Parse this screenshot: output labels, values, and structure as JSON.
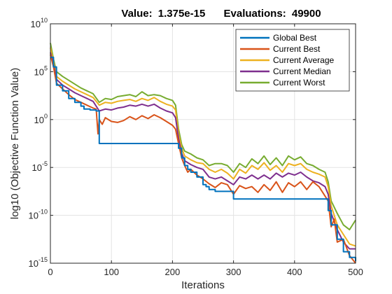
{
  "chart_data": {
    "type": "line",
    "title_value_label": "Value:",
    "title_value": "1.375e-15",
    "title_evals_label": "Evaluations:",
    "title_evals": "49900",
    "xlabel": "Iterations",
    "ylabel": "log10 (Objective Function Value)",
    "xlim": [
      0,
      500
    ],
    "ylim_log10": [
      -15,
      10
    ],
    "yscale": "log",
    "grid": true,
    "legend_position": "top-right",
    "x_ticks": [
      "0",
      "100",
      "200",
      "300",
      "400",
      "500"
    ],
    "x_tick_values": [
      0,
      100,
      200,
      300,
      400,
      500
    ],
    "y_ticks": [
      {
        "base": "10",
        "exp": "-15",
        "value": -15
      },
      {
        "base": "10",
        "exp": "-10",
        "value": -10
      },
      {
        "base": "10",
        "exp": "-5",
        "value": -5
      },
      {
        "base": "10",
        "exp": "0",
        "value": 0
      },
      {
        "base": "10",
        "exp": "5",
        "value": 5
      },
      {
        "base": "10",
        "exp": "10",
        "value": 10
      }
    ],
    "series": [
      {
        "name": "Global Best",
        "color": "#0072BD",
        "x": [
          0,
          5,
          10,
          20,
          30,
          40,
          50,
          55,
          65,
          75,
          78,
          80,
          100,
          150,
          200,
          205,
          210,
          215,
          220,
          225,
          230,
          240,
          250,
          255,
          260,
          270,
          280,
          295,
          300,
          330,
          360,
          400,
          440,
          450,
          455,
          460,
          470,
          480,
          490,
          500
        ],
        "log10_y": [
          6.5,
          5.5,
          3.6,
          3.0,
          2.2,
          1.8,
          1.4,
          1.1,
          1.0,
          0.9,
          0.9,
          -2.5,
          -2.5,
          -2.5,
          -2.5,
          -2.5,
          -3.0,
          -4.0,
          -4.8,
          -5.2,
          -5.5,
          -6.0,
          -6.8,
          -7.0,
          -7.3,
          -7.5,
          -7.5,
          -7.5,
          -8.3,
          -8.3,
          -8.3,
          -8.3,
          -8.3,
          -8.3,
          -9.5,
          -11.0,
          -12.5,
          -13.8,
          -14.4,
          -14.8
        ]
      },
      {
        "name": "Current Best",
        "color": "#D95319",
        "x": [
          0,
          5,
          10,
          20,
          30,
          40,
          50,
          60,
          70,
          75,
          78,
          80,
          85,
          90,
          100,
          110,
          120,
          130,
          140,
          150,
          160,
          170,
          180,
          190,
          200,
          205,
          210,
          215,
          220,
          225,
          230,
          240,
          250,
          260,
          270,
          280,
          290,
          300,
          310,
          320,
          330,
          340,
          350,
          360,
          370,
          380,
          390,
          400,
          410,
          420,
          430,
          440,
          450,
          455,
          460,
          465,
          470,
          480,
          490,
          500
        ],
        "log10_y": [
          6.8,
          5.5,
          3.8,
          3.2,
          2.6,
          2.1,
          1.8,
          1.5,
          1.2,
          1.1,
          -1.5,
          0.0,
          -0.5,
          0.2,
          -0.2,
          -0.3,
          -0.1,
          0.3,
          0.0,
          0.4,
          0.1,
          0.5,
          0.2,
          -0.2,
          -0.6,
          -1.0,
          -2.5,
          -4.0,
          -4.8,
          -5.5,
          -5.2,
          -5.8,
          -6.2,
          -6.7,
          -7.1,
          -6.6,
          -6.8,
          -7.8,
          -6.9,
          -7.2,
          -7.0,
          -7.6,
          -6.8,
          -7.4,
          -6.5,
          -7.6,
          -6.6,
          -7.0,
          -6.5,
          -7.3,
          -6.5,
          -7.0,
          -8.0,
          -8.5,
          -11.2,
          -10.4,
          -12.8,
          -12.5,
          -14.2,
          -15.0
        ]
      },
      {
        "name": "Current Average",
        "color": "#EDB120",
        "x": [
          0,
          5,
          10,
          20,
          30,
          40,
          50,
          60,
          70,
          80,
          90,
          100,
          110,
          120,
          130,
          140,
          150,
          160,
          170,
          180,
          190,
          200,
          205,
          210,
          215,
          220,
          230,
          240,
          250,
          260,
          270,
          280,
          290,
          300,
          310,
          320,
          330,
          340,
          350,
          360,
          370,
          380,
          390,
          400,
          410,
          420,
          430,
          440,
          450,
          455,
          460,
          470,
          480,
          490,
          500
        ],
        "log10_y": [
          7.5,
          6.0,
          4.5,
          4.0,
          3.6,
          3.2,
          2.9,
          2.6,
          2.3,
          1.5,
          1.8,
          1.7,
          1.9,
          2.0,
          2.1,
          1.9,
          2.2,
          2.0,
          2.3,
          1.9,
          1.6,
          1.4,
          1.0,
          -1.5,
          -3.0,
          -3.8,
          -4.2,
          -4.5,
          -4.6,
          -5.2,
          -5.5,
          -5.2,
          -5.6,
          -6.2,
          -5.2,
          -5.6,
          -4.8,
          -5.2,
          -4.5,
          -5.3,
          -4.8,
          -5.5,
          -4.6,
          -4.8,
          -4.6,
          -5.2,
          -5.5,
          -5.7,
          -6.0,
          -7.0,
          -9.0,
          -11.0,
          -12.0,
          -13.0,
          -13.2
        ]
      },
      {
        "name": "Current Median",
        "color": "#7E2F8E",
        "x": [
          0,
          5,
          10,
          20,
          30,
          40,
          50,
          60,
          70,
          80,
          90,
          100,
          110,
          120,
          130,
          140,
          150,
          160,
          170,
          180,
          190,
          200,
          205,
          210,
          215,
          220,
          230,
          240,
          250,
          260,
          270,
          280,
          290,
          300,
          310,
          320,
          330,
          340,
          350,
          360,
          370,
          380,
          390,
          400,
          410,
          420,
          430,
          440,
          450,
          455,
          460,
          470,
          480,
          490,
          500
        ],
        "log10_y": [
          7.0,
          5.8,
          4.2,
          3.6,
          3.2,
          2.8,
          2.5,
          2.2,
          1.9,
          0.9,
          1.1,
          1.0,
          1.2,
          1.3,
          1.5,
          1.4,
          1.6,
          1.4,
          1.6,
          1.2,
          0.9,
          0.7,
          0.2,
          -2.0,
          -3.5,
          -4.3,
          -4.7,
          -5.0,
          -5.2,
          -6.0,
          -6.2,
          -6.0,
          -6.4,
          -6.8,
          -6.0,
          -6.2,
          -5.8,
          -6.2,
          -5.8,
          -6.2,
          -5.6,
          -6.0,
          -5.6,
          -5.8,
          -5.5,
          -6.0,
          -6.4,
          -6.6,
          -7.0,
          -7.8,
          -9.8,
          -11.5,
          -12.8,
          -13.5,
          -13.5
        ]
      },
      {
        "name": "Current Worst",
        "color": "#77AC30",
        "x": [
          0,
          5,
          10,
          20,
          30,
          40,
          50,
          60,
          70,
          80,
          90,
          100,
          110,
          120,
          130,
          140,
          150,
          160,
          170,
          180,
          190,
          200,
          205,
          210,
          215,
          220,
          230,
          240,
          250,
          260,
          270,
          280,
          290,
          300,
          310,
          320,
          330,
          340,
          350,
          360,
          370,
          380,
          390,
          400,
          410,
          420,
          430,
          440,
          450,
          455,
          460,
          470,
          480,
          490,
          500
        ],
        "log10_y": [
          8.0,
          6.3,
          5.0,
          4.5,
          4.1,
          3.7,
          3.3,
          3.0,
          2.7,
          1.8,
          2.2,
          2.1,
          2.4,
          2.5,
          2.6,
          2.4,
          2.9,
          2.5,
          2.6,
          2.5,
          2.2,
          2.0,
          1.5,
          -1.0,
          -2.6,
          -3.3,
          -3.6,
          -4.0,
          -4.2,
          -4.8,
          -4.6,
          -4.6,
          -4.8,
          -5.5,
          -4.6,
          -5.0,
          -4.1,
          -4.6,
          -3.8,
          -4.7,
          -4.0,
          -4.8,
          -3.8,
          -4.2,
          -3.9,
          -4.6,
          -4.8,
          -5.2,
          -5.5,
          -6.5,
          -8.5,
          -9.8,
          -11.0,
          -11.5,
          -10.5
        ]
      }
    ]
  }
}
